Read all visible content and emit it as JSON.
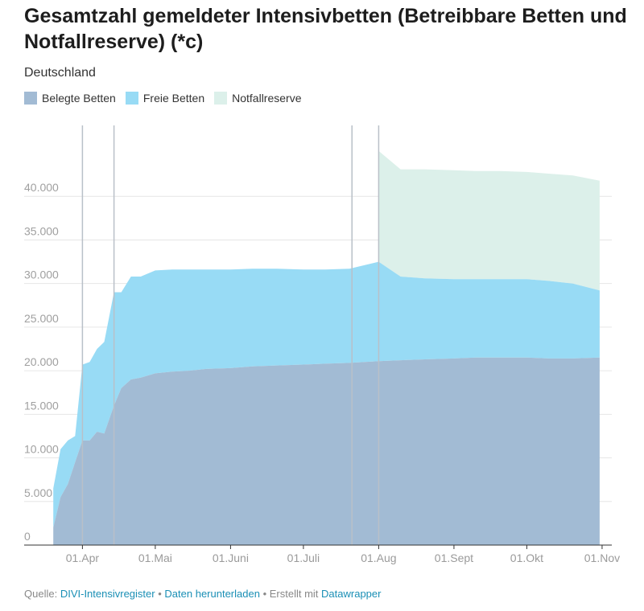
{
  "title": "Gesamtzahl gemeldeter Intensivbetten (Betreibbare Betten und Notfallreserve) (*c)",
  "subtitle": "Deutschland",
  "legend": [
    {
      "label": "Belegte Betten",
      "color": "#a2bbd4"
    },
    {
      "label": "Freie Betten",
      "color": "#98dbf5"
    },
    {
      "label": "Notfallreserve",
      "color": "#dcf0ea"
    }
  ],
  "source": {
    "prefix": "Quelle:",
    "link1": "DIVI-Intensivregister",
    "sep1": "•",
    "link2": "Daten herunterladen",
    "sep2": "• Erstellt mit",
    "link3": "Datawrapper"
  },
  "chart_data": {
    "type": "area",
    "stacked": true,
    "ylim": [
      0,
      45000
    ],
    "y_ticks": [
      0,
      5000,
      10000,
      15000,
      20000,
      25000,
      30000,
      35000,
      40000
    ],
    "y_tick_labels": [
      "0",
      "5.000",
      "10.000",
      "15.000",
      "20.000",
      "25.000",
      "30.000",
      "35.000",
      "40.000"
    ],
    "x_ticks": [
      {
        "date": "2020-04-01",
        "label": "01.Apr"
      },
      {
        "date": "2020-05-01",
        "label": "01.Mai"
      },
      {
        "date": "2020-06-01",
        "label": "01.Juni"
      },
      {
        "date": "2020-07-01",
        "label": "01.Juli"
      },
      {
        "date": "2020-08-01",
        "label": "01.Aug"
      },
      {
        "date": "2020-09-01",
        "label": "01.Sept"
      },
      {
        "date": "2020-10-01",
        "label": "01.Okt"
      },
      {
        "date": "2020-11-01",
        "label": "01.Nov"
      }
    ],
    "xlim": [
      "2020-03-08",
      "2020-11-05"
    ],
    "vertical_markers": [
      "2020-04-01",
      "2020-04-14",
      "2020-07-21",
      "2020-08-01"
    ],
    "grid": true,
    "legend_position": "top-left",
    "series": [
      {
        "name": "Belegte Betten",
        "color": "#a2bbd4",
        "x": [
          "2020-03-20",
          "2020-03-23",
          "2020-03-26",
          "2020-03-29",
          "2020-04-01",
          "2020-04-04",
          "2020-04-07",
          "2020-04-10",
          "2020-04-14",
          "2020-04-17",
          "2020-04-21",
          "2020-04-25",
          "2020-05-01",
          "2020-05-08",
          "2020-05-15",
          "2020-05-22",
          "2020-06-01",
          "2020-06-10",
          "2020-06-20",
          "2020-07-01",
          "2020-07-10",
          "2020-07-20",
          "2020-08-01",
          "2020-08-10",
          "2020-08-20",
          "2020-09-01",
          "2020-09-10",
          "2020-09-20",
          "2020-10-01",
          "2020-10-10",
          "2020-10-20",
          "2020-10-31"
        ],
        "values": [
          2000,
          5500,
          7000,
          9500,
          12000,
          12000,
          13000,
          12800,
          16000,
          18000,
          19000,
          19200,
          19700,
          19900,
          20000,
          20200,
          20300,
          20500,
          20600,
          20700,
          20800,
          20900,
          21100,
          21200,
          21300,
          21400,
          21500,
          21500,
          21500,
          21400,
          21400,
          21500
        ]
      },
      {
        "name": "Freie Betten",
        "color": "#98dbf5",
        "x": [
          "2020-03-20",
          "2020-03-23",
          "2020-03-26",
          "2020-03-29",
          "2020-04-01",
          "2020-04-04",
          "2020-04-07",
          "2020-04-10",
          "2020-04-14",
          "2020-04-17",
          "2020-04-21",
          "2020-04-25",
          "2020-05-01",
          "2020-05-08",
          "2020-05-15",
          "2020-05-22",
          "2020-06-01",
          "2020-06-10",
          "2020-06-20",
          "2020-07-01",
          "2020-07-10",
          "2020-07-20",
          "2020-08-01",
          "2020-08-10",
          "2020-08-20",
          "2020-09-01",
          "2020-09-10",
          "2020-09-20",
          "2020-10-01",
          "2020-10-10",
          "2020-10-20",
          "2020-10-31"
        ],
        "values": [
          4500,
          5500,
          5000,
          3000,
          8700,
          9000,
          9500,
          10500,
          13000,
          11000,
          11800,
          11600,
          11800,
          11700,
          11600,
          11400,
          11300,
          11200,
          11100,
          10900,
          10800,
          10800,
          11400,
          9600,
          9300,
          9100,
          9000,
          9000,
          9000,
          8900,
          8600,
          7700
        ]
      },
      {
        "name": "Notfallreserve",
        "color": "#dcf0ea",
        "x": [
          "2020-08-01",
          "2020-08-10",
          "2020-08-20",
          "2020-09-01",
          "2020-09-10",
          "2020-09-20",
          "2020-10-01",
          "2020-10-10",
          "2020-10-20",
          "2020-10-31"
        ],
        "values": [
          12700,
          12300,
          12500,
          12500,
          12400,
          12400,
          12300,
          12300,
          12400,
          12600
        ]
      }
    ]
  }
}
